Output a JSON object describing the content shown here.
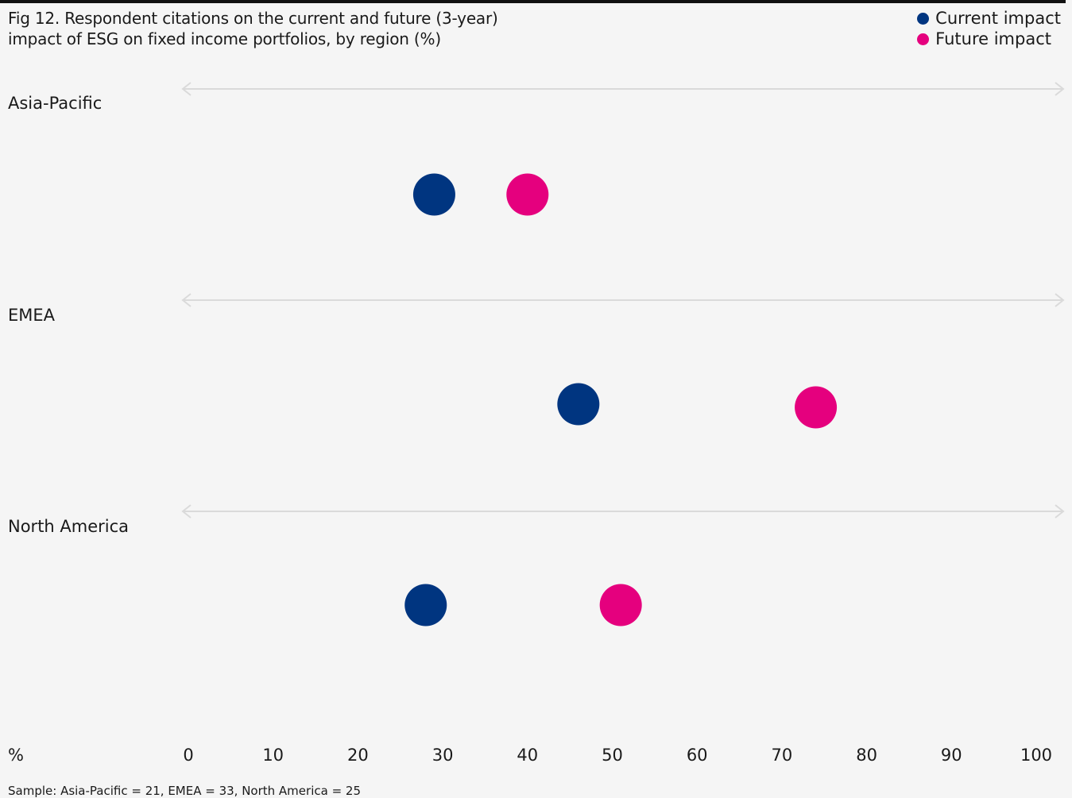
{
  "header": {
    "title_line1": "Fig 12. Respondent citations on the current and future (3-year)",
    "title_line2": "impact of ESG on fixed income portfolios, by region (%)"
  },
  "legend": {
    "current_label": "Current impact",
    "future_label": "Future impact"
  },
  "colors": {
    "current": "#003580",
    "future": "#e5007e",
    "guide": "#dadada",
    "background": "#f5f5f5"
  },
  "axis": {
    "unit_label": "%"
  },
  "footer": {
    "sample": "Sample: Asia-Pacific = 21, EMEA = 33, North America = 25"
  },
  "chart_data": {
    "type": "scatter",
    "categories": [
      "Asia-Pacific",
      "EMEA",
      "North America"
    ],
    "series": [
      {
        "name": "Current impact",
        "values": [
          29,
          46,
          28
        ]
      },
      {
        "name": "Future impact",
        "values": [
          40,
          74,
          51
        ]
      }
    ],
    "xlabel": "%",
    "xlim": [
      0,
      100
    ],
    "xticks": [
      "0",
      "10",
      "20",
      "30",
      "40",
      "50",
      "60",
      "70",
      "80",
      "90",
      "100"
    ],
    "grid": false,
    "legend_position": "top-right"
  }
}
